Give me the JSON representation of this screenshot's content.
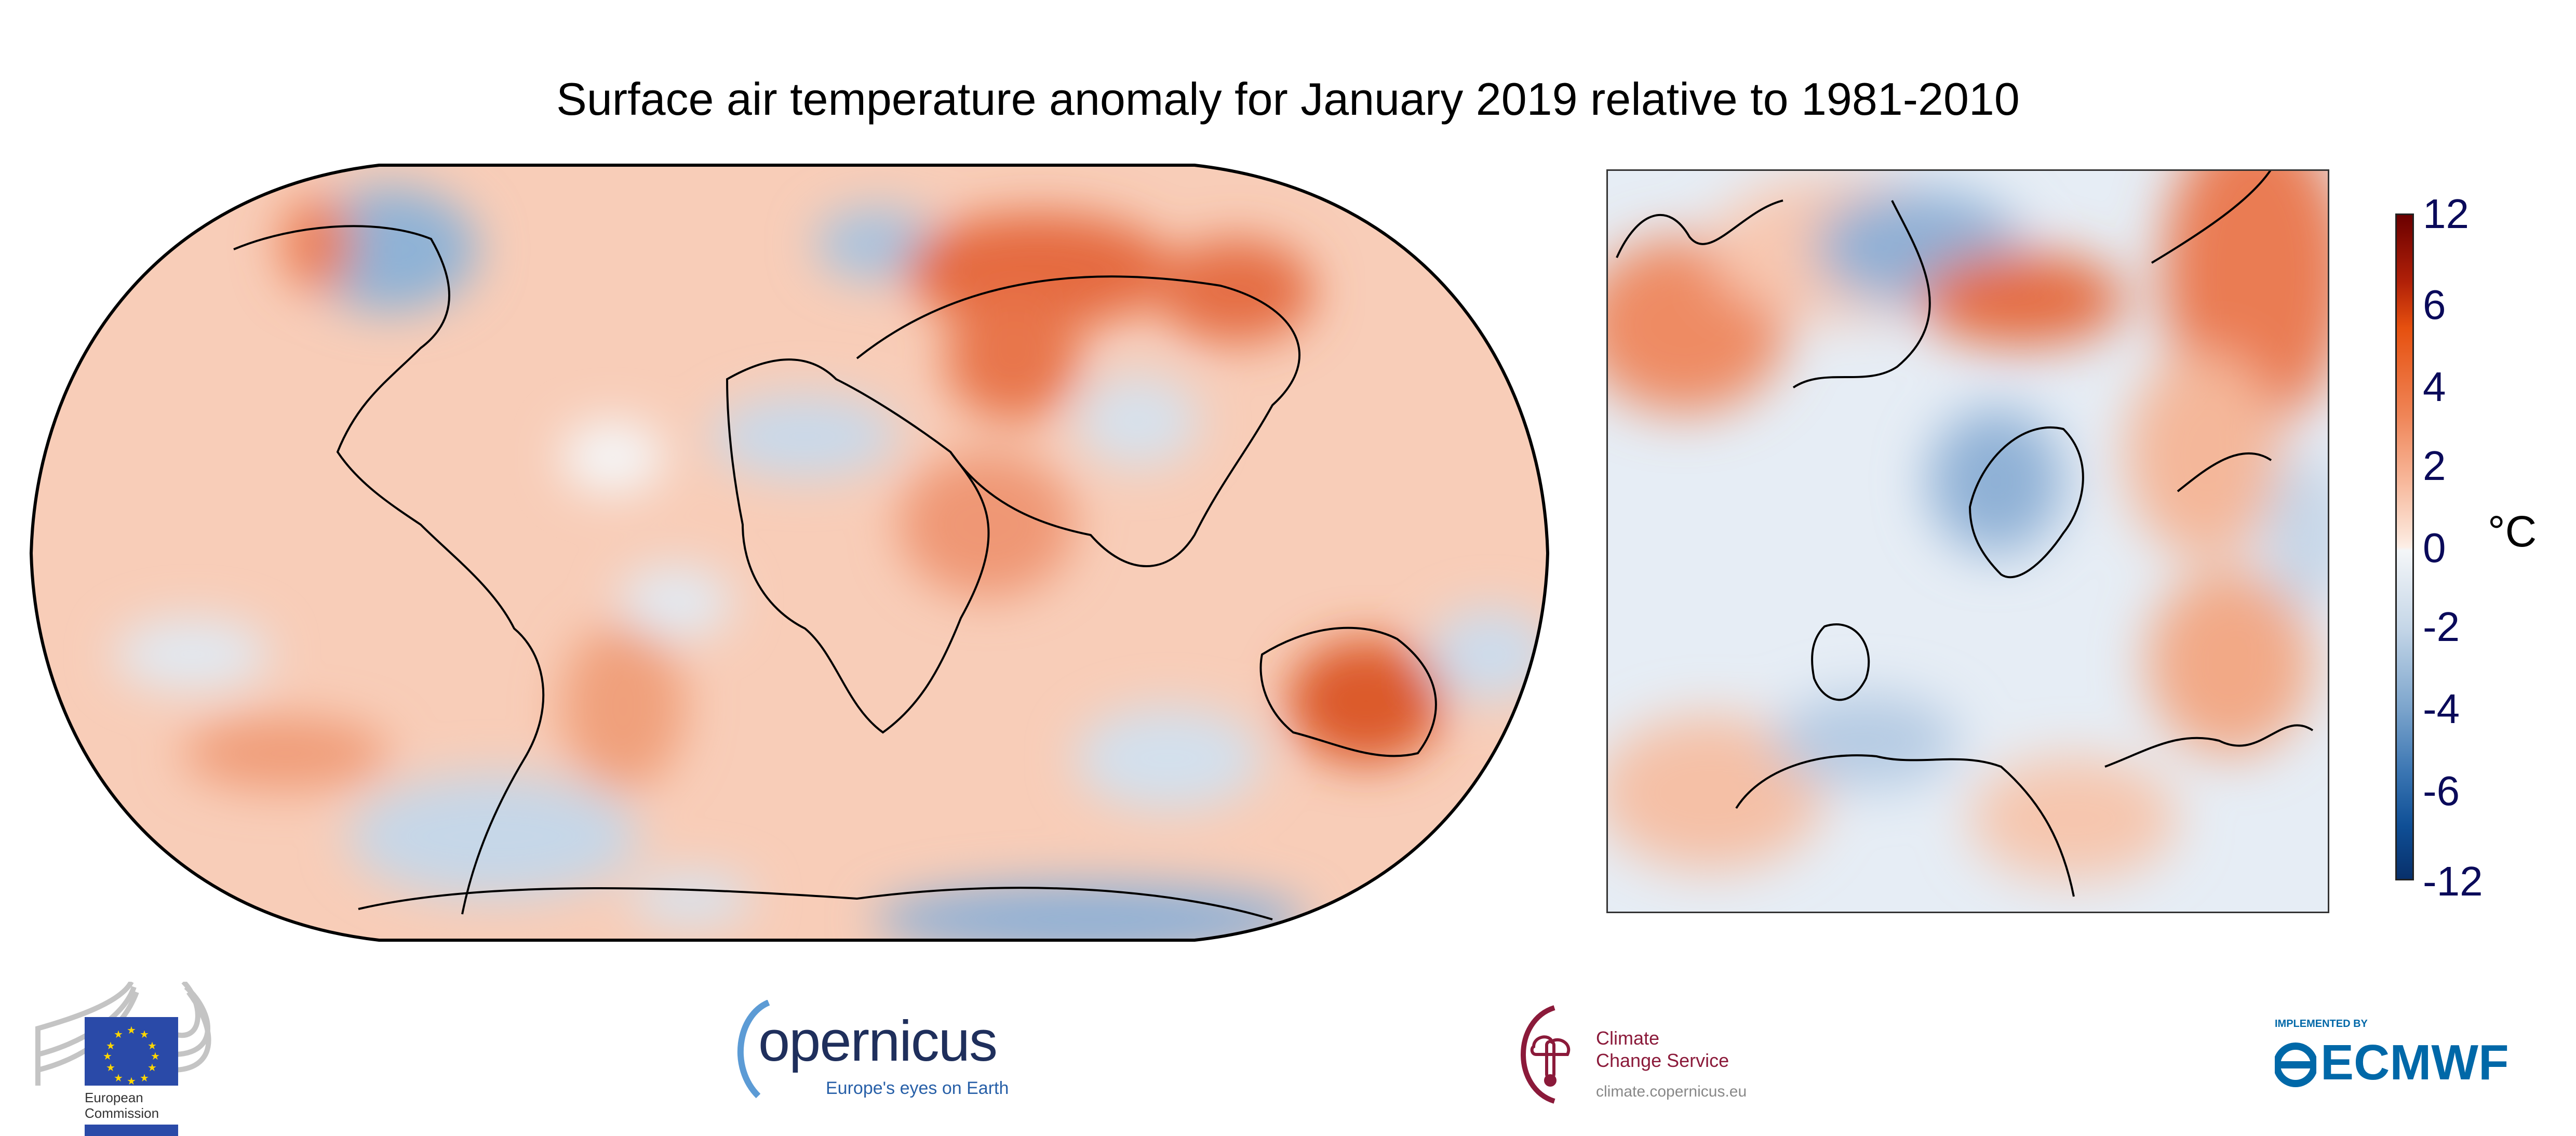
{
  "chart_data": {
    "type": "heatmap",
    "title": "Surface air temperature anomaly for January 2019 relative to 1981-2010",
    "panels": [
      "global map (Robinson projection)",
      "Europe map"
    ],
    "colorbar": {
      "label": "°C",
      "ticks": [
        "12",
        "6",
        "4",
        "2",
        "0",
        "-2",
        "-4",
        "-6",
        "-12"
      ],
      "range": [
        -12,
        12
      ],
      "colors": {
        "max": "#6b0000",
        "warm": "#e6500f",
        "neutral": "#ffffff",
        "cool": "#7ea6cd",
        "min": "#08306b"
      }
    }
  },
  "logos": {
    "ec": {
      "line1": "European",
      "line2": "Commission"
    },
    "copernicus": {
      "name": "opernicus",
      "tagline": "Europe's eyes on Earth"
    },
    "c3s": {
      "line1": "Climate",
      "line2": "Change Service",
      "url": "climate.copernicus.eu"
    },
    "ecmwf": {
      "implemented": "IMPLEMENTED BY",
      "name": "ECMWF"
    }
  }
}
